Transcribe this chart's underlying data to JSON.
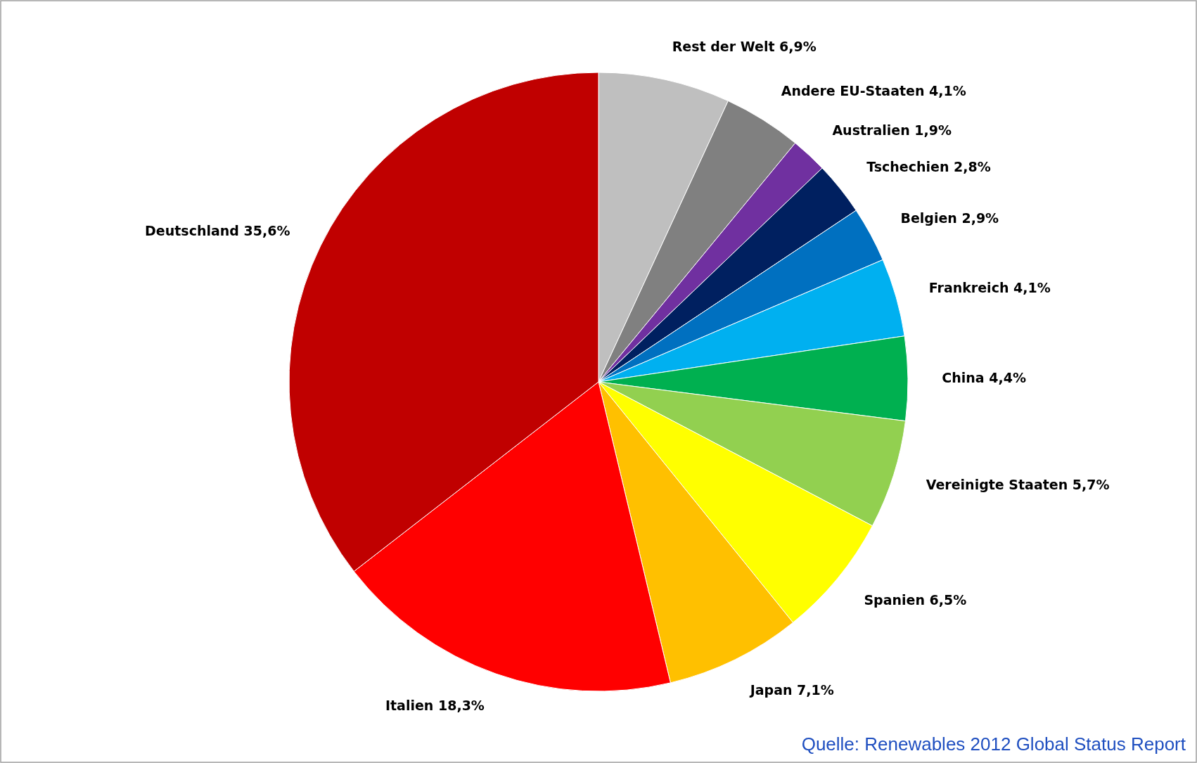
{
  "chart_data": {
    "type": "pie",
    "categories": [
      "Rest der Welt",
      "Andere EU-Staaten",
      "Australien",
      "Tschechien",
      "Belgien",
      "Frankreich",
      "China",
      "Vereinigte Staaten",
      "Spanien",
      "Japan",
      "Italien",
      "Deutschland"
    ],
    "values": [
      6.9,
      4.1,
      1.9,
      2.8,
      2.9,
      4.1,
      4.4,
      5.7,
      6.5,
      7.1,
      18.3,
      35.6
    ],
    "value_labels": [
      "6,9%",
      "4,1%",
      "1,9%",
      "2,8%",
      "2,9%",
      "4,1%",
      "4,4%",
      "5,7%",
      "6,5%",
      "7,1%",
      "18,3%",
      "35,6%"
    ],
    "colors": [
      "#bfbfbf",
      "#808080",
      "#7030a0",
      "#002060",
      "#0070c0",
      "#00b0f0",
      "#00b050",
      "#92d050",
      "#ffff00",
      "#ffc000",
      "#ff0000",
      "#c00000"
    ],
    "annotations": [
      "Quelle: Renewables 2012 Global Status Report"
    ]
  }
}
